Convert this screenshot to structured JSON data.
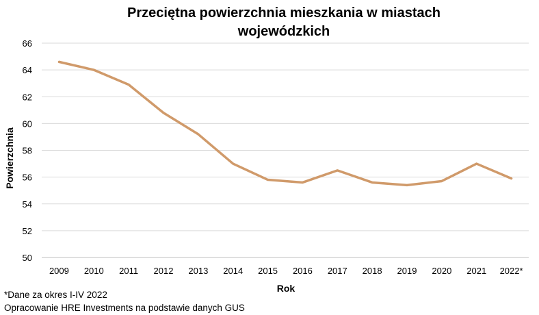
{
  "chart_data": {
    "type": "line",
    "title_lines": [
      "Przeciętna powierzchnia mieszkania w miastach",
      "wojewódzkich"
    ],
    "xlabel": "Rok",
    "ylabel": "Powierzchnia",
    "categories": [
      "2009",
      "2010",
      "2011",
      "2012",
      "2013",
      "2014",
      "2015",
      "2016",
      "2017",
      "2018",
      "2019",
      "2020",
      "2021",
      "2022*"
    ],
    "series": [
      {
        "values": [
          64.6,
          64.0,
          62.9,
          60.8,
          59.2,
          57.0,
          55.8,
          55.6,
          56.5,
          55.6,
          55.4,
          55.7,
          57.0,
          55.9
        ]
      }
    ],
    "ylim": [
      50,
      66
    ],
    "yticks": [
      50,
      52,
      54,
      56,
      58,
      60,
      62,
      64,
      66
    ],
    "grid": true,
    "line_color": "#d09a6a"
  },
  "notes": {
    "footnote": "*Dane za okres I-IV 2022",
    "source": "Opracowanie HRE Investments na podstawie danych GUS"
  }
}
